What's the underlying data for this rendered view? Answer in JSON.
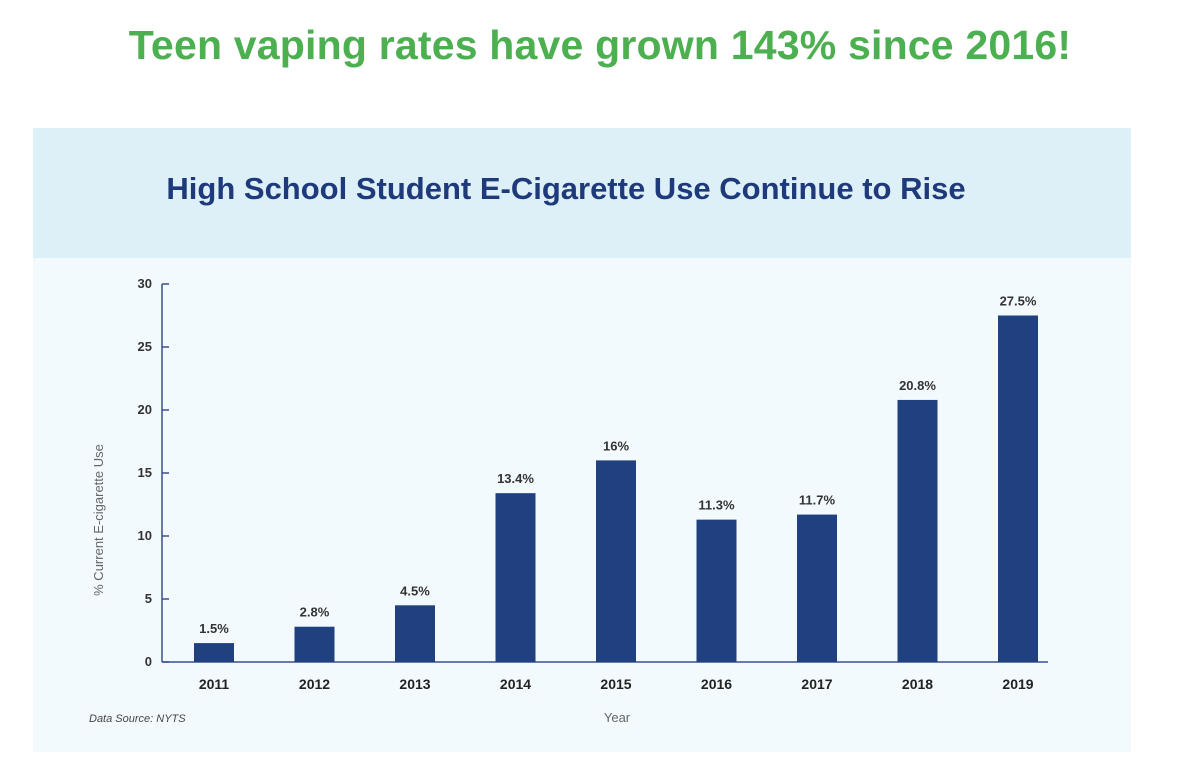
{
  "headline": "Teen vaping rates have grown 143% since 2016!",
  "source_note": "Data Source: NYTS",
  "colors": {
    "headline": "#4CAF50",
    "bar": "#21407f",
    "axis": "#3a4f8f",
    "title": "#1f3a7a"
  },
  "chart_data": {
    "type": "bar",
    "title": "High School Student E-Cigarette Use Continue to Rise",
    "xlabel": "Year",
    "ylabel": "% Current E-cigarette Use",
    "ylim": [
      0,
      30
    ],
    "yticks": [
      0,
      5,
      10,
      15,
      20,
      25,
      30
    ],
    "categories": [
      "2011",
      "2012",
      "2013",
      "2014",
      "2015",
      "2016",
      "2017",
      "2018",
      "2019"
    ],
    "values": [
      1.5,
      2.8,
      4.5,
      13.4,
      16,
      11.3,
      11.7,
      20.8,
      27.5
    ],
    "data_labels": [
      "1.5%",
      "2.8%",
      "4.5%",
      "13.4%",
      "16%",
      "11.3%",
      "11.7%",
      "20.8%",
      "27.5%"
    ],
    "grid": false,
    "legend": "none"
  }
}
